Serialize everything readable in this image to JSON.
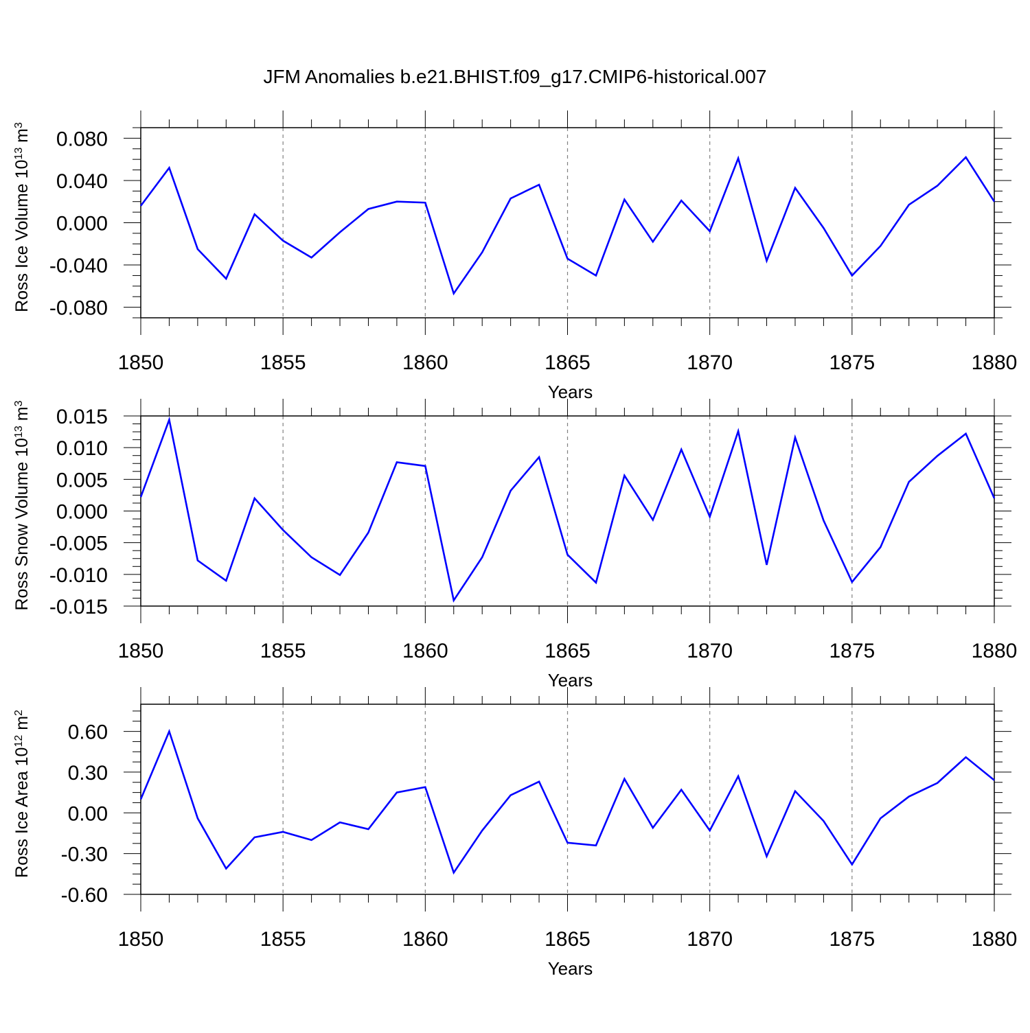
{
  "title": "JFM Anomalies b.e21.BHIST.f09_g17.CMIP6-historical.007",
  "colors": {
    "line": "#0000ff",
    "axis": "#000000",
    "grid": "#808080"
  },
  "chart_data": [
    {
      "type": "line",
      "ylabel": "Ross Ice Volume 10",
      "ylabel_sup": "13",
      "ylabel_unit": " m",
      "ylabel_unit_sup": "3",
      "xlabel": "Years",
      "xlim": [
        1850,
        1880
      ],
      "ylim": [
        -0.09,
        0.09
      ],
      "yticks": [
        -0.08,
        -0.04,
        0.0,
        0.04,
        0.08
      ],
      "yticklabels": [
        "-0.080",
        "-0.040",
        "0.000",
        "0.040",
        "0.080"
      ],
      "xticks": [
        1850,
        1855,
        1860,
        1865,
        1870,
        1875,
        1880
      ],
      "xticklabels": [
        "1850",
        "1855",
        "1860",
        "1865",
        "1870",
        "1875",
        "1880"
      ],
      "x": [
        1850,
        1851,
        1852,
        1853,
        1854,
        1855,
        1856,
        1857,
        1858,
        1859,
        1860,
        1861,
        1862,
        1863,
        1864,
        1865,
        1866,
        1867,
        1868,
        1869,
        1870,
        1871,
        1872,
        1873,
        1874,
        1875,
        1876,
        1877,
        1878,
        1879,
        1880
      ],
      "values": [
        0.016,
        0.052,
        -0.025,
        -0.053,
        0.008,
        -0.017,
        -0.033,
        -0.009,
        0.013,
        0.02,
        0.019,
        -0.067,
        -0.028,
        0.023,
        0.036,
        -0.034,
        -0.05,
        0.022,
        -0.018,
        0.021,
        -0.008,
        0.061,
        -0.036,
        0.033,
        -0.005,
        -0.05,
        -0.022,
        0.017,
        0.035,
        0.062,
        0.02
      ]
    },
    {
      "type": "line",
      "ylabel": "Ross Snow Volume 10",
      "ylabel_sup": "13",
      "ylabel_unit": " m",
      "ylabel_unit_sup": "3",
      "xlabel": "Years",
      "xlim": [
        1850,
        1880
      ],
      "ylim": [
        -0.015,
        0.015
      ],
      "yticks": [
        -0.015,
        -0.01,
        -0.005,
        0.0,
        0.005,
        0.01,
        0.015
      ],
      "yticklabels": [
        "-0.015",
        "-0.010",
        "-0.005",
        "0.000",
        "0.005",
        "0.010",
        "0.015"
      ],
      "xticks": [
        1850,
        1855,
        1860,
        1865,
        1870,
        1875,
        1880
      ],
      "xticklabels": [
        "1850",
        "1855",
        "1860",
        "1865",
        "1870",
        "1875",
        "1880"
      ],
      "x": [
        1850,
        1851,
        1852,
        1853,
        1854,
        1855,
        1856,
        1857,
        1858,
        1859,
        1860,
        1861,
        1862,
        1863,
        1864,
        1865,
        1866,
        1867,
        1868,
        1869,
        1870,
        1871,
        1872,
        1873,
        1874,
        1875,
        1876,
        1877,
        1878,
        1879,
        1880
      ],
      "values": [
        0.0022,
        0.0144,
        -0.0078,
        -0.011,
        0.002,
        -0.003,
        -0.0073,
        -0.0101,
        -0.0034,
        0.0077,
        0.0071,
        -0.0141,
        -0.0073,
        0.0032,
        0.0085,
        -0.0069,
        -0.0113,
        0.0056,
        -0.0014,
        0.0097,
        -0.0009,
        0.0126,
        -0.0085,
        0.0116,
        -0.0015,
        -0.0112,
        -0.0057,
        0.0046,
        0.0087,
        0.0122,
        0.002
      ]
    },
    {
      "type": "line",
      "ylabel": "Ross Ice Area 10",
      "ylabel_sup": "12",
      "ylabel_unit": " m",
      "ylabel_unit_sup": "2",
      "xlabel": "Years",
      "xlim": [
        1850,
        1880
      ],
      "ylim": [
        -0.6,
        0.8
      ],
      "yticks": [
        -0.6,
        -0.3,
        0.0,
        0.3,
        0.6
      ],
      "yticklabels": [
        "-0.60",
        "-0.30",
        "0.00",
        "0.30",
        "0.60"
      ],
      "xticks": [
        1850,
        1855,
        1860,
        1865,
        1870,
        1875,
        1880
      ],
      "xticklabels": [
        "1850",
        "1855",
        "1860",
        "1865",
        "1870",
        "1875",
        "1880"
      ],
      "x": [
        1850,
        1851,
        1852,
        1853,
        1854,
        1855,
        1856,
        1857,
        1858,
        1859,
        1860,
        1861,
        1862,
        1863,
        1864,
        1865,
        1866,
        1867,
        1868,
        1869,
        1870,
        1871,
        1872,
        1873,
        1874,
        1875,
        1876,
        1877,
        1878,
        1879,
        1880
      ],
      "values": [
        0.1,
        0.6,
        -0.04,
        -0.41,
        -0.18,
        -0.14,
        -0.2,
        -0.07,
        -0.12,
        0.15,
        0.19,
        -0.44,
        -0.13,
        0.13,
        0.23,
        -0.22,
        -0.24,
        0.25,
        -0.11,
        0.17,
        -0.13,
        0.27,
        -0.32,
        0.16,
        -0.06,
        -0.38,
        -0.04,
        0.12,
        0.22,
        0.41,
        0.24
      ]
    }
  ]
}
